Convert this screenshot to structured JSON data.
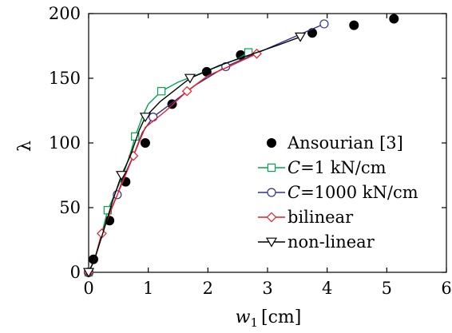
{
  "chart_data": {
    "type": "line",
    "xlabel_var": "w",
    "xlabel_sub": "1",
    "xlabel_unit": "[cm]",
    "ylabel": "λ",
    "xlim": [
      0,
      6
    ],
    "ylim": [
      0,
      200
    ],
    "xticks": [
      "0",
      "1",
      "2",
      "3",
      "4",
      "5",
      "6"
    ],
    "yticks": [
      "0",
      "50",
      "100",
      "150",
      "200"
    ],
    "legend_position": "center-right",
    "series": [
      {
        "name": "Ansourian [3]",
        "style": "scatter",
        "marker": "filled-circle",
        "color": "#000000",
        "x": [
          0.0,
          0.08,
          0.35,
          0.62,
          0.95,
          1.4,
          1.98,
          2.55,
          3.75,
          4.45,
          5.12
        ],
        "y": [
          0,
          10,
          40,
          70,
          100,
          130,
          155,
          168,
          185,
          191,
          196
        ]
      },
      {
        "name_italic": "C",
        "name": "=1 kN/cm",
        "style": "line",
        "marker": "square",
        "color": "#00a651",
        "x": [
          0.0,
          0.1,
          0.22,
          0.32,
          0.48,
          0.6,
          0.72,
          0.78,
          0.9,
          1.0,
          1.22,
          1.5,
          2.0,
          2.5,
          2.68
        ],
        "y": [
          0,
          10,
          30,
          48,
          65,
          78,
          95,
          105,
          120,
          130,
          140,
          147,
          156,
          165,
          170
        ],
        "marker_x": [
          0.0,
          0.32,
          0.78,
          1.22,
          2.68
        ],
        "marker_y": [
          0,
          48,
          105,
          140,
          170
        ]
      },
      {
        "name_italic": "C",
        "name": "=1000 kN/cm",
        "style": "line",
        "marker": "open-circle",
        "color": "#2e3192",
        "x": [
          0.0,
          0.1,
          0.22,
          0.35,
          0.48,
          0.6,
          0.75,
          0.9,
          1.08,
          1.4,
          1.8,
          2.3,
          2.8,
          3.4,
          3.95
        ],
        "y": [
          0,
          10,
          30,
          46,
          60,
          75,
          90,
          108,
          120,
          131,
          145,
          159,
          169,
          181,
          192
        ],
        "marker_x": [
          0.0,
          0.48,
          1.08,
          2.3,
          3.95
        ],
        "marker_y": [
          0,
          60,
          120,
          159,
          192
        ]
      },
      {
        "name": "bilinear",
        "style": "line",
        "marker": "open-diamond",
        "color": "#ed1c24",
        "x": [
          0.0,
          0.1,
          0.22,
          0.35,
          0.5,
          0.75,
          0.95,
          1.3,
          1.65,
          2.0,
          2.4,
          2.82
        ],
        "y": [
          0,
          10,
          30,
          45,
          62,
          90,
          112,
          125,
          140,
          152,
          160,
          169
        ],
        "marker_x": [
          0.0,
          0.22,
          0.75,
          1.65,
          2.82
        ],
        "marker_y": [
          0,
          30,
          90,
          140,
          169
        ]
      },
      {
        "name": "non-linear",
        "style": "line",
        "marker": "open-triangle-down",
        "color": "#000000",
        "x": [
          0.0,
          0.1,
          0.25,
          0.4,
          0.55,
          0.7,
          0.85,
          0.95,
          1.2,
          1.7,
          2.2,
          2.7,
          3.2,
          3.55
        ],
        "y": [
          0,
          10,
          32,
          55,
          75,
          90,
          110,
          120,
          132,
          150,
          160,
          168,
          176,
          182
        ],
        "marker_x": [
          0.0,
          0.55,
          0.95,
          1.7,
          3.55
        ],
        "marker_y": [
          0,
          75,
          120,
          150,
          182
        ]
      }
    ]
  }
}
